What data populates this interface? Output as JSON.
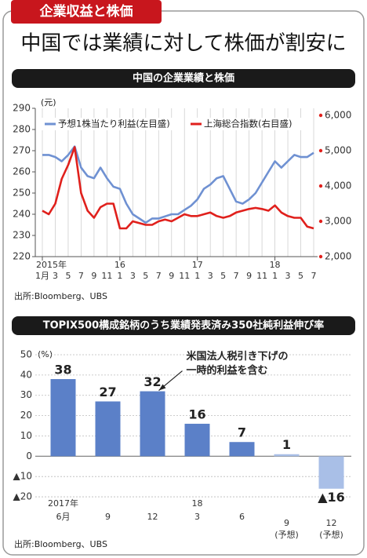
{
  "header": {
    "tag": "企業収益と株価",
    "title": "中国では業績に対して株価が割安に"
  },
  "chart_data": [
    {
      "type": "line",
      "title": "中国の企業業績と株価",
      "y_unit": "(元)",
      "categories": [
        "1月",
        null,
        "3",
        null,
        "5",
        null,
        "7",
        null,
        "9",
        null,
        "11",
        null,
        "1",
        null,
        "3",
        null,
        "5",
        null,
        "7",
        null,
        "9",
        null,
        "11",
        null,
        "1",
        null,
        "3",
        null,
        "5",
        null,
        "7",
        null,
        "9",
        null,
        "11",
        null,
        "1",
        null,
        "3",
        null,
        "5",
        null,
        "7"
      ],
      "x_groups": [
        {
          "label": "2015年",
          "start": 0
        },
        {
          "label": "16",
          "start": 12
        },
        {
          "label": "17",
          "start": 24
        },
        {
          "label": "18",
          "start": 36
        }
      ],
      "ylim": [
        220,
        290
      ],
      "yticks": [
        220,
        230,
        240,
        250,
        260,
        270,
        280,
        290
      ],
      "y2lim": [
        2000,
        6200
      ],
      "y2ticks": [
        {
          "value": 2000,
          "label": "2,000"
        },
        {
          "value": 3000,
          "label": "3,000"
        },
        {
          "value": 4000,
          "label": "4,000"
        },
        {
          "value": 5000,
          "label": "5,000"
        },
        {
          "value": 6000,
          "label": "6,000"
        }
      ],
      "series": [
        {
          "name": "予想1株当たり利益(左目盛)",
          "color": "#6f91d2",
          "values": [
            268,
            268,
            267,
            265,
            268,
            272,
            262,
            258,
            257,
            262,
            257,
            253,
            252,
            245,
            240,
            238,
            236,
            238,
            238,
            239,
            240,
            240,
            242,
            244,
            247,
            252,
            254,
            257,
            258,
            252,
            246,
            245,
            247,
            250,
            255,
            260,
            265,
            262,
            265,
            268,
            267,
            267,
            269
          ]
        },
        {
          "name": "上海総合指数(右目盛)",
          "color": "#e0201c",
          "axis": "y2",
          "values": [
            3300,
            3200,
            3500,
            4200,
            4600,
            5100,
            3800,
            3300,
            3100,
            3400,
            3500,
            3500,
            2800,
            2800,
            3000,
            2950,
            2900,
            2900,
            3000,
            3050,
            3000,
            3100,
            3200,
            3150,
            3150,
            3200,
            3250,
            3150,
            3100,
            3150,
            3250,
            3300,
            3350,
            3380,
            3350,
            3300,
            3450,
            3250,
            3150,
            3100,
            3100,
            2850,
            2800
          ]
        }
      ],
      "legend": "top-left",
      "source": "出所:Bloomberg、UBS"
    },
    {
      "type": "bar",
      "title": "TOPIX500構成銘柄のうち業績発表済み350社純利益伸び率",
      "y_unit": "(%)",
      "categories": [
        {
          "year": "2017年",
          "month": "6月"
        },
        {
          "month": "9"
        },
        {
          "month": "12"
        },
        {
          "year": "18",
          "month": "3"
        },
        {
          "month": "6"
        },
        {
          "month": "9",
          "note": "(予想)"
        },
        {
          "month": "12",
          "note": "(予想)"
        }
      ],
      "values": [
        38,
        27,
        32,
        16,
        7,
        1,
        -16
      ],
      "value_labels": [
        "38",
        "27",
        "32",
        "16",
        "7",
        "1",
        "▲16"
      ],
      "colors": [
        "#5b80c8",
        "#5b80c8",
        "#5b80c8",
        "#5b80c8",
        "#5b80c8",
        "#a9bfe7",
        "#a9bfe7"
      ],
      "ylim": [
        -25,
        50
      ],
      "yticks": [
        50,
        40,
        30,
        20,
        10,
        0,
        {
          "value": -10,
          "label": "▲10"
        },
        {
          "value": -20,
          "label": "▲20"
        }
      ],
      "grid": true,
      "annotation": {
        "lines": [
          "米国法人税引き下げの",
          "一時的利益を含む"
        ],
        "target": 2
      },
      "source": "出所:Bloomberg、UBS"
    }
  ]
}
